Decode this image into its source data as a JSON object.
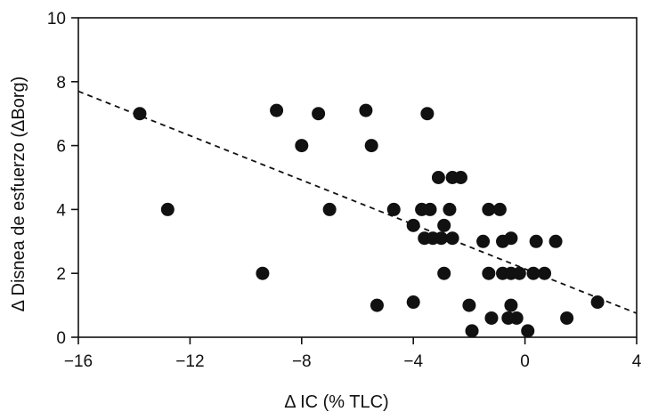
{
  "chart_data": {
    "type": "scatter",
    "title": "",
    "xlabel": "Δ IC (% TLC)",
    "ylabel": "Δ Disnea de esfuerzo (ΔBorg)",
    "xlim": [
      -16,
      4
    ],
    "ylim": [
      0,
      10
    ],
    "x_ticks": [
      -16,
      -12,
      -8,
      -4,
      0,
      4
    ],
    "y_ticks": [
      0,
      2,
      4,
      6,
      8,
      10
    ],
    "x_tick_labels": [
      "−16",
      "−12",
      "−8",
      "−4",
      "0",
      "4"
    ],
    "y_tick_labels": [
      "0",
      "2",
      "4",
      "6",
      "8",
      "10"
    ],
    "grid": false,
    "marker_color": "#111111",
    "trendline": {
      "style": "dashed",
      "x": [
        -16,
        4
      ],
      "y": [
        7.7,
        0.75
      ]
    },
    "points": [
      {
        "x": -13.8,
        "y": 7.0
      },
      {
        "x": -12.8,
        "y": 4.0
      },
      {
        "x": -9.4,
        "y": 2.0
      },
      {
        "x": -8.9,
        "y": 7.1
      },
      {
        "x": -8.0,
        "y": 6.0
      },
      {
        "x": -7.4,
        "y": 7.0
      },
      {
        "x": -7.0,
        "y": 4.0
      },
      {
        "x": -5.7,
        "y": 7.1
      },
      {
        "x": -5.5,
        "y": 6.0
      },
      {
        "x": -5.3,
        "y": 1.0
      },
      {
        "x": -4.7,
        "y": 4.0
      },
      {
        "x": -4.0,
        "y": 3.5
      },
      {
        "x": -4.0,
        "y": 1.1
      },
      {
        "x": -3.7,
        "y": 4.0
      },
      {
        "x": -3.6,
        "y": 3.1
      },
      {
        "x": -3.5,
        "y": 7.0
      },
      {
        "x": -3.4,
        "y": 4.0
      },
      {
        "x": -3.3,
        "y": 3.1
      },
      {
        "x": -3.1,
        "y": 5.0
      },
      {
        "x": -3.0,
        "y": 3.1
      },
      {
        "x": -2.9,
        "y": 3.5
      },
      {
        "x": -2.9,
        "y": 2.0
      },
      {
        "x": -2.7,
        "y": 4.0
      },
      {
        "x": -2.6,
        "y": 3.1
      },
      {
        "x": -2.6,
        "y": 5.0
      },
      {
        "x": -2.3,
        "y": 5.0
      },
      {
        "x": -2.0,
        "y": 1.0
      },
      {
        "x": -1.9,
        "y": 0.2
      },
      {
        "x": -1.5,
        "y": 3.0
      },
      {
        "x": -1.3,
        "y": 4.0
      },
      {
        "x": -1.3,
        "y": 2.0
      },
      {
        "x": -1.2,
        "y": 0.6
      },
      {
        "x": -0.9,
        "y": 4.0
      },
      {
        "x": -0.8,
        "y": 3.0
      },
      {
        "x": -0.8,
        "y": 2.0
      },
      {
        "x": -0.6,
        "y": 0.6
      },
      {
        "x": -0.5,
        "y": 3.1
      },
      {
        "x": -0.5,
        "y": 2.0
      },
      {
        "x": -0.5,
        "y": 1.0
      },
      {
        "x": -0.3,
        "y": 0.6
      },
      {
        "x": -0.2,
        "y": 2.0
      },
      {
        "x": 0.1,
        "y": 0.2
      },
      {
        "x": 0.3,
        "y": 2.0
      },
      {
        "x": 0.4,
        "y": 3.0
      },
      {
        "x": 0.7,
        "y": 2.0
      },
      {
        "x": 1.1,
        "y": 3.0
      },
      {
        "x": 1.5,
        "y": 0.6
      },
      {
        "x": 2.6,
        "y": 1.1
      }
    ]
  }
}
